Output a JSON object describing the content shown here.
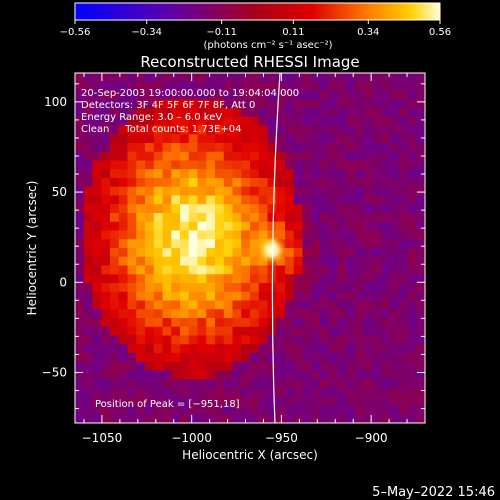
{
  "chart_data": {
    "type": "heatmap",
    "title": "Reconstructed RHESSI Image",
    "xlabel": "Heliocentric X (arcsec)",
    "ylabel": "Heliocentric Y (arcsec)",
    "xlim": [
      -1065,
      -870
    ],
    "ylim": [
      -78,
      116
    ],
    "xticks": [
      -1050,
      -1000,
      -950,
      -900
    ],
    "yticks": [
      -50,
      0,
      50,
      100
    ],
    "xtick_labels": [
      "−1050",
      "−1000",
      "−950",
      "−900"
    ],
    "ytick_labels": [
      "−50",
      "0",
      "50",
      "100"
    ],
    "colorbar": {
      "min": -0.56,
      "max": 0.56,
      "tick_values": [
        -0.56,
        -0.34,
        -0.11,
        0.11,
        0.34,
        0.56
      ],
      "tick_labels": [
        "−0.56",
        "−0.34",
        "−0.11",
        "0.11",
        "0.34",
        "0.56"
      ],
      "unit_label": "(photons cm⁻² s⁻¹ asec⁻²)"
    },
    "annotations": [
      "20-Sep-2003 19:00:00.000 to 19:04:04.000",
      "Detectors: 3F 4F 5F 6F 7F 8F, Att 0",
      "Energy Range: 3.0 – 6.0 keV",
      "Clean     Total counts: 1.73E+04"
    ],
    "peak_label": "Position of Peak = [−951,18]",
    "peak_position": [
      -951,
      18
    ],
    "limb_shown": true,
    "colors": {
      "background": "#000000",
      "low": "#0000ff",
      "mid": "#cc0000",
      "high": "#ffffe0"
    }
  },
  "footer": {
    "timestamp": "5–May–2022 15:46"
  }
}
